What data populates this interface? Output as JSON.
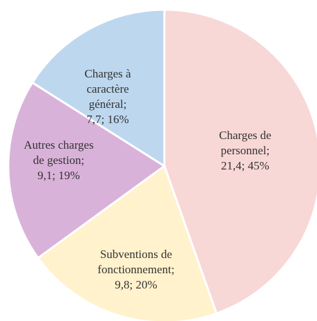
{
  "chart_data": {
    "type": "pie",
    "categories": [
      "Charges de personnel",
      "Subventions de fonctionnement",
      "Autres charges de gestion",
      "Charges à caractère général"
    ],
    "values": [
      21.4,
      9.8,
      9.1,
      7.7
    ],
    "value_labels": [
      "21,4",
      "9,8",
      "9,1",
      "7,7"
    ],
    "percents": [
      45,
      20,
      19,
      16
    ],
    "percent_labels": [
      "45%",
      "20%",
      "19%",
      "16%"
    ],
    "label_separator": "; ",
    "colors": [
      "#f8d7d7",
      "#fff2cc",
      "#d9b2d9",
      "#bdd7ee"
    ],
    "start_angle": 0,
    "direction": "clockwise"
  }
}
